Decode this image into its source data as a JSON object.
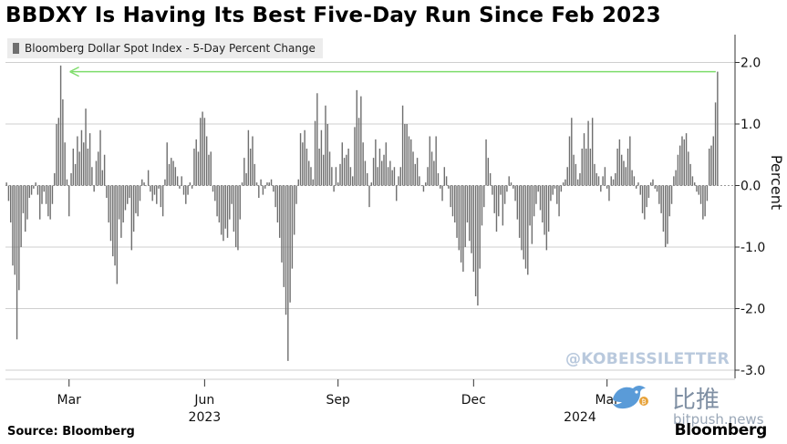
{
  "title": "BBDXY Is Having Its Best Five-Day Run Since Feb 2023",
  "legend_label": "Bloomberg Dollar Spot Index - 5-Day Percent Change",
  "source": "Source: Bloomberg",
  "brand": "Bloomberg",
  "watermark": "@KOBEISSILETTER",
  "bitpush_cn": "比推",
  "bitpush_site": "bitpush.news",
  "colors": {
    "bar": "#6f6f6f",
    "arrow": "#7ddc6a",
    "grid": "#cfcfcf",
    "watermark": "#b9c9dd"
  },
  "chart_data": {
    "type": "bar",
    "title": "BBDXY Is Having Its Best Five-Day Run Since Feb 2023",
    "ylabel": "Percent",
    "ylim": [
      -3.2,
      2.5
    ],
    "yticks": [
      2.0,
      1.0,
      0.0,
      -1.0,
      -2.0,
      -3.0
    ],
    "ytick_labels": [
      "2.0",
      "1.0",
      "0.0",
      "-1.0",
      "-2.0",
      "-3.0"
    ],
    "x_tick_labels": [
      "Mar",
      "Jun",
      "Sep",
      "Dec",
      "Mar"
    ],
    "x_tick_index": [
      30,
      95,
      159,
      224,
      288
    ],
    "year_labels": [
      "2023",
      "2024"
    ],
    "year_label_index": [
      95,
      275
    ],
    "annotation": "Arrow from latest reading (~1.85) back to the Feb 2023 peak (~1.95)",
    "series": [
      {
        "name": "Bloomberg Dollar Spot Index - 5-Day Percent Change",
        "values": [
          0.05,
          -0.25,
          -0.6,
          -1.3,
          -1.45,
          -2.5,
          -1.7,
          -1.0,
          -0.45,
          -0.75,
          -0.55,
          -0.2,
          -0.15,
          -0.05,
          0.05,
          -0.15,
          -0.55,
          -0.3,
          -0.1,
          -0.3,
          -0.5,
          -0.55,
          -0.3,
          0.2,
          1.0,
          1.1,
          1.95,
          1.4,
          0.7,
          0.1,
          -0.5,
          0.2,
          0.6,
          0.35,
          0.8,
          0.55,
          0.9,
          0.7,
          1.25,
          0.6,
          0.85,
          0.3,
          -0.1,
          0.4,
          0.55,
          0.9,
          0.25,
          0.5,
          -0.2,
          -0.6,
          -0.9,
          -1.15,
          -1.3,
          -1.6,
          -0.55,
          -0.85,
          -0.6,
          -0.4,
          -0.3,
          -0.2,
          -1.05,
          -0.75,
          -0.45,
          -0.5,
          -0.25,
          0.1,
          0.05,
          0.0,
          0.25,
          -0.1,
          -0.25,
          -0.15,
          -0.3,
          -0.05,
          -0.35,
          -0.5,
          0.1,
          0.7,
          0.35,
          0.45,
          0.4,
          0.3,
          0.15,
          -0.05,
          0.15,
          -0.15,
          -0.3,
          -0.15,
          0.05,
          -0.05,
          0.6,
          0.75,
          0.55,
          1.1,
          1.2,
          1.1,
          0.8,
          0.5,
          0.55,
          -0.1,
          -0.25,
          -0.5,
          -0.6,
          -0.8,
          -0.9,
          -0.7,
          -0.85,
          -0.55,
          -0.3,
          -0.75,
          -1.0,
          -1.05,
          -0.55,
          0.05,
          0.45,
          0.2,
          0.9,
          0.6,
          0.8,
          0.35,
          0.05,
          -0.2,
          0.1,
          -0.15,
          -0.05,
          0.05,
          0.05,
          0.1,
          -0.1,
          -0.35,
          -0.6,
          -0.85,
          -1.25,
          -1.65,
          -2.1,
          -2.85,
          -1.9,
          -1.35,
          -0.8,
          -0.3,
          0.1,
          0.85,
          0.7,
          0.9,
          0.6,
          0.4,
          0.3,
          0.1,
          1.05,
          1.5,
          0.6,
          0.9,
          0.5,
          1.3,
          1.0,
          0.55,
          0.3,
          -0.1,
          0.3,
          0.05,
          0.35,
          0.7,
          0.45,
          0.5,
          0.6,
          0.3,
          0.15,
          0.95,
          1.55,
          1.1,
          1.45,
          0.7,
          0.4,
          0.2,
          -0.35,
          0.05,
          0.45,
          0.75,
          0.3,
          0.6,
          0.4,
          0.5,
          0.7,
          0.3,
          0.4,
          0.25,
          0.3,
          -0.25,
          0.15,
          0.3,
          1.3,
          1.0,
          1.0,
          0.8,
          0.75,
          0.55,
          0.35,
          0.45,
          0.15,
          0.0,
          -0.1,
          0.05,
          0.3,
          0.8,
          0.55,
          0.4,
          0.8,
          0.2,
          -0.05,
          -0.25,
          0.3,
          0.15,
          -0.05,
          -0.35,
          -0.5,
          -0.6,
          -0.85,
          -1.05,
          -1.25,
          -1.4,
          -1.0,
          -0.6,
          -0.9,
          -1.1,
          -1.4,
          -1.8,
          -1.95,
          -1.35,
          -0.65,
          -0.35,
          0.75,
          0.45,
          0.2,
          -0.15,
          -0.45,
          -0.75,
          -0.5,
          -0.15,
          -0.65,
          -0.3,
          -0.1,
          0.15,
          0.05,
          -0.05,
          -0.25,
          -0.55,
          -0.85,
          -1.05,
          -1.2,
          -1.35,
          -1.45,
          -0.65,
          -0.95,
          -0.5,
          -0.3,
          -0.1,
          -0.4,
          -0.6,
          -0.8,
          -1.05,
          -0.75,
          -0.25,
          -0.15,
          -0.05,
          -0.3,
          -0.5,
          -0.1,
          0.05,
          0.1,
          0.3,
          0.8,
          1.1,
          0.5,
          0.35,
          0.1,
          0.2,
          0.6,
          0.85,
          0.6,
          1.05,
          0.6,
          1.1,
          0.35,
          0.2,
          0.15,
          -0.1,
          0.15,
          0.3,
          -0.05,
          -0.25,
          0.15,
          0.1,
          0.2,
          0.6,
          0.75,
          0.5,
          0.4,
          0.3,
          0.6,
          0.8,
          0.25,
          0.15,
          -0.05,
          0.05,
          -0.15,
          -0.45,
          -0.55,
          -0.35,
          -0.2,
          0.05,
          0.1,
          -0.05,
          -0.1,
          -0.3,
          -0.45,
          -0.75,
          -1.0,
          -0.95,
          -0.5,
          -0.3,
          0.15,
          0.25,
          0.5,
          0.65,
          0.8,
          0.75,
          0.85,
          0.55,
          0.35,
          0.15,
          0.05,
          -0.1,
          -0.15,
          -0.3,
          -0.55,
          -0.5,
          -0.25,
          0.6,
          0.65,
          0.8,
          1.35,
          1.85
        ]
      }
    ]
  }
}
